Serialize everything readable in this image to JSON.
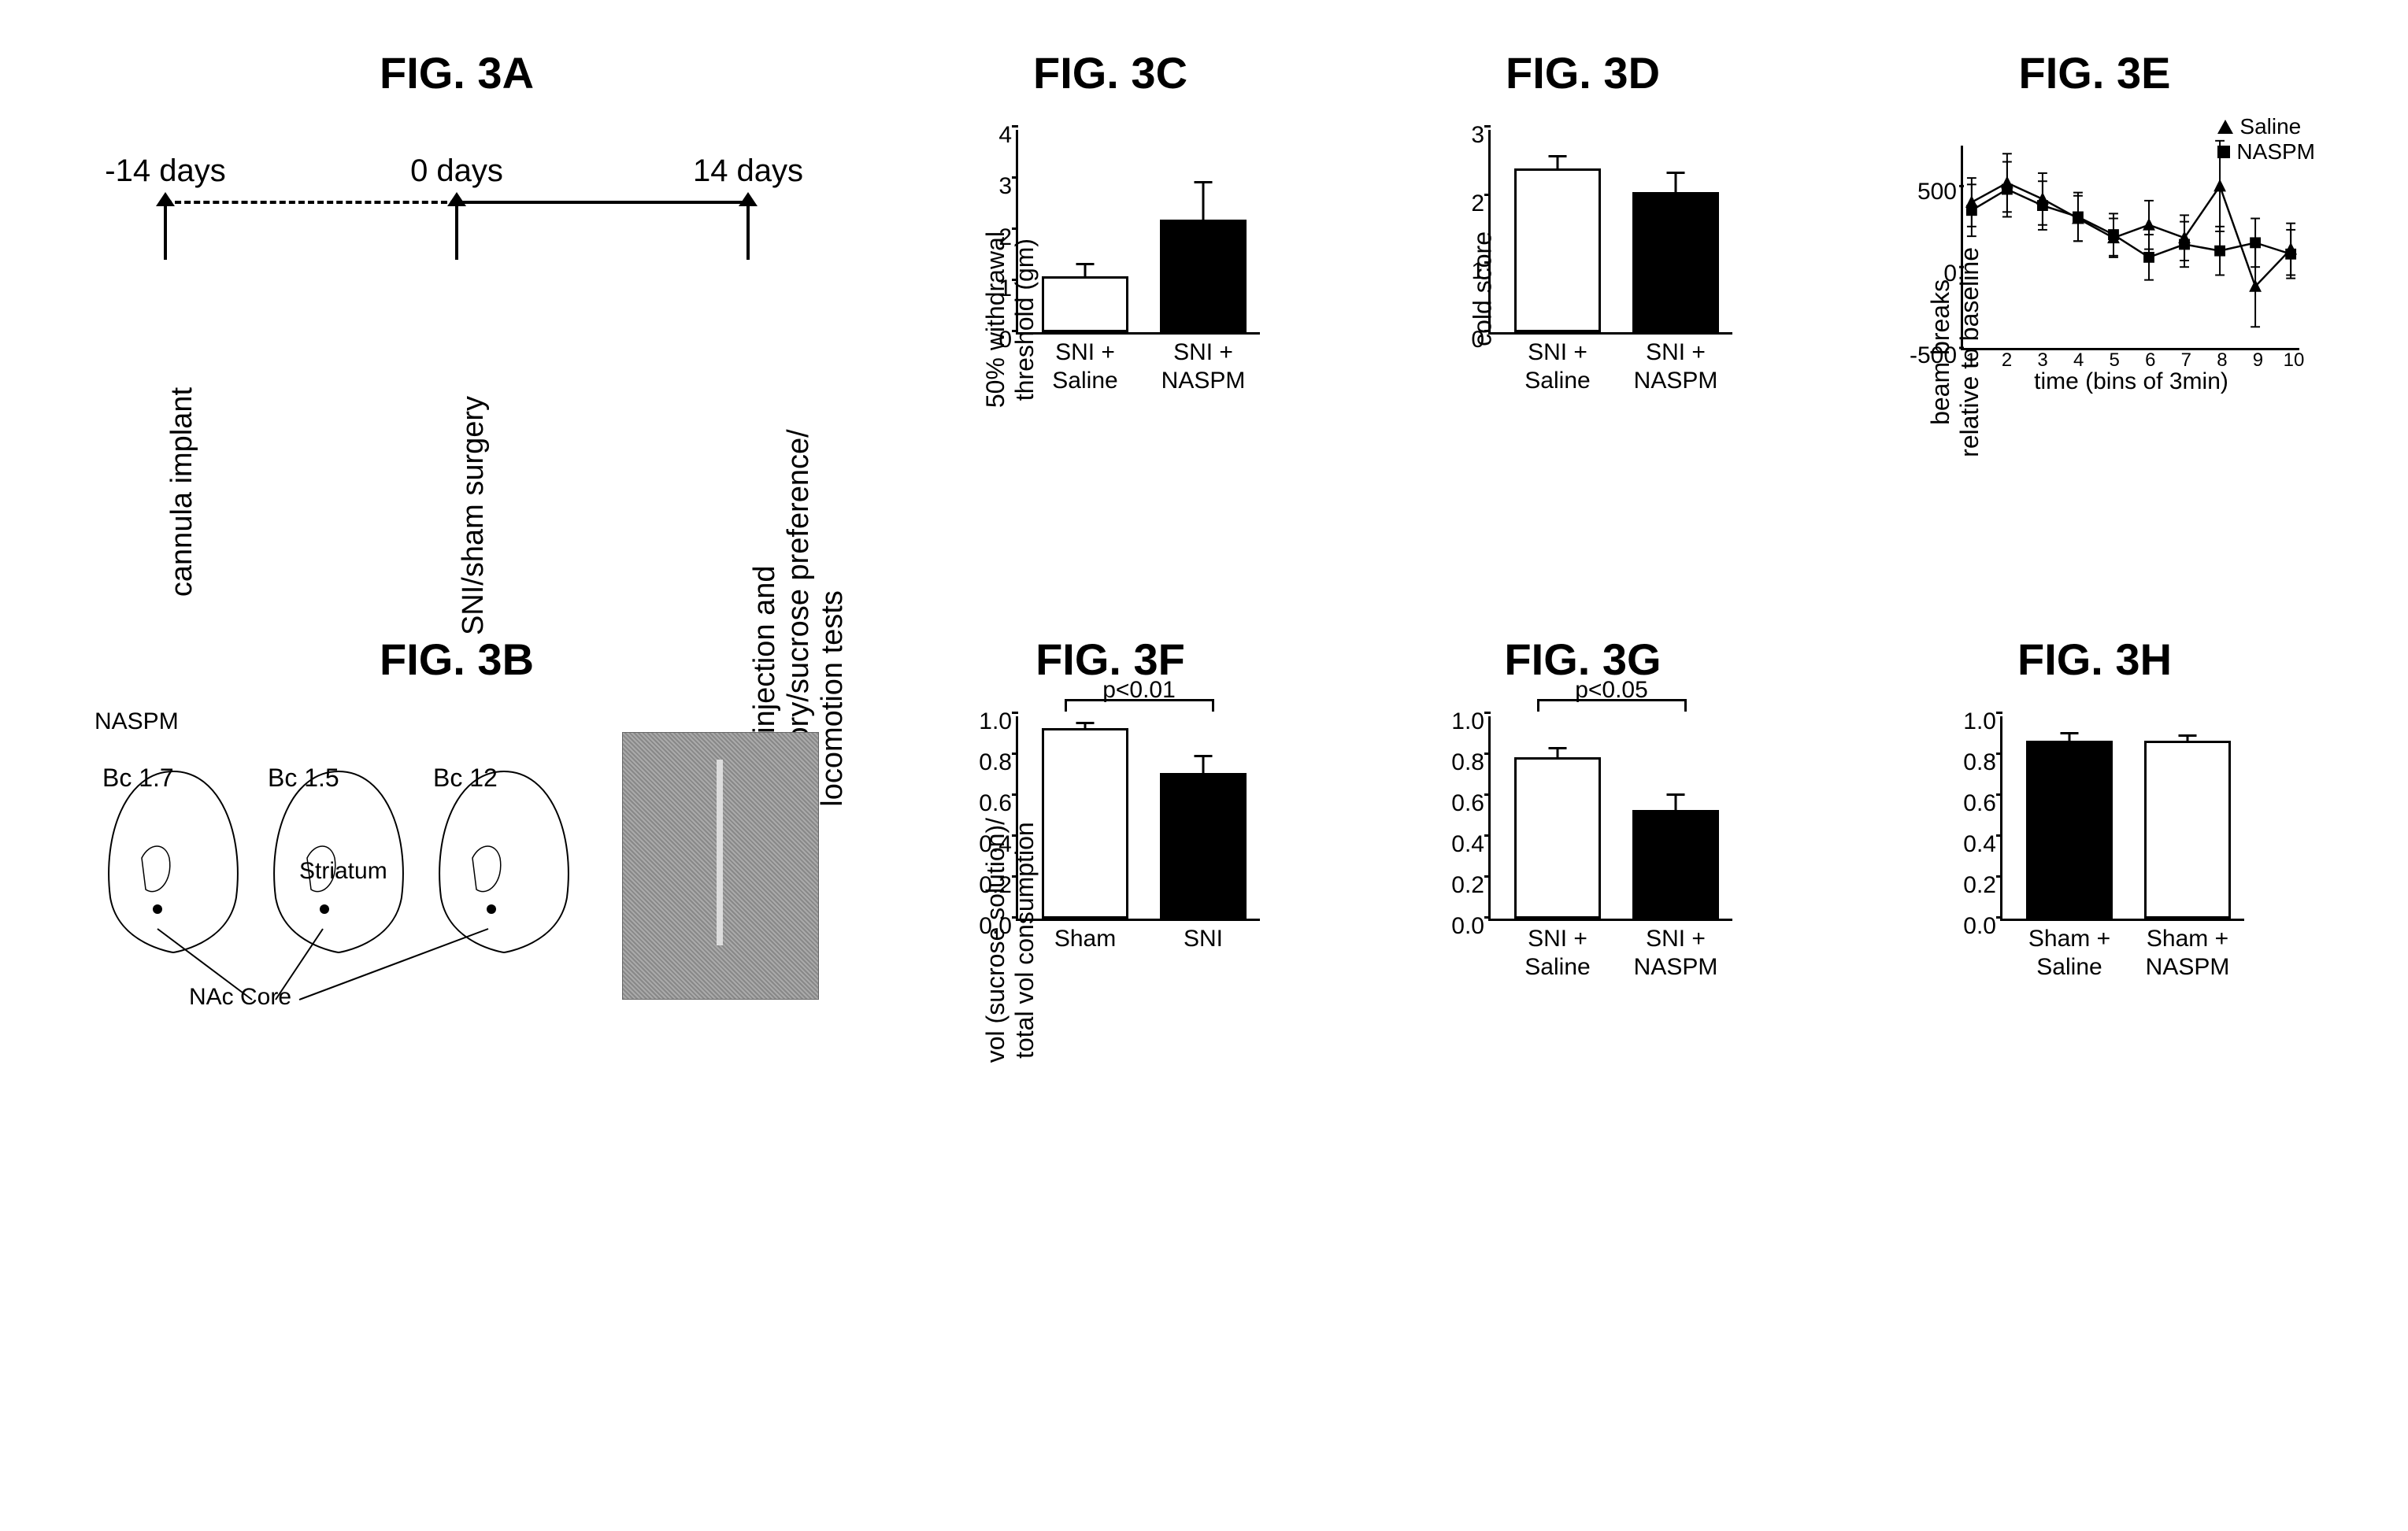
{
  "panels": {
    "A": {
      "title": "FIG. 3A",
      "timeline": {
        "ticks": [
          "-14 days",
          "0 days",
          "14 days"
        ],
        "events": [
          "cannula implant",
          "SNI/sham surgery",
          "microinjection and\nsensory/sucrose preference/\nlocomotion tests"
        ]
      }
    },
    "B": {
      "title": "FIG. 3B",
      "drug_label": "NASPM",
      "bc_labels": [
        "Bc 1.7",
        "Bc 1.5",
        "Bc 12"
      ],
      "anat_labels": [
        "Striatum",
        "NAc Core"
      ]
    },
    "C": {
      "title": "FIG. 3C",
      "type": "bar",
      "ylabel": "50% withdrawal\nthreshold (gm)",
      "ylim": [
        0,
        4
      ],
      "yticks": [
        0,
        1,
        2,
        3,
        4
      ],
      "bars": [
        {
          "label_top": "SNI +",
          "label_bottom": "Saline",
          "value": 1.1,
          "err": 0.25,
          "fill": "white"
        },
        {
          "label_top": "SNI +",
          "label_bottom": "NASPM",
          "value": 2.2,
          "err": 0.75,
          "fill": "black"
        }
      ]
    },
    "D": {
      "title": "FIG. 3D",
      "type": "bar",
      "ylabel": "cold score",
      "ylim": [
        0,
        3
      ],
      "yticks": [
        0,
        1,
        2,
        3
      ],
      "bars": [
        {
          "label_top": "SNI +",
          "label_bottom": "Saline",
          "value": 2.4,
          "err": 0.2,
          "fill": "white"
        },
        {
          "label_top": "SNI +",
          "label_bottom": "NASPM",
          "value": 2.05,
          "err": 0.3,
          "fill": "black"
        }
      ]
    },
    "E": {
      "title": "FIG. 3E",
      "type": "line",
      "ylabel": "beam breaks\nrelative to baseline",
      "xlabel": "time (bins of 3min)",
      "ylim": [
        -500,
        750
      ],
      "yticks": [
        -500,
        0,
        500
      ],
      "xlim": [
        1,
        10
      ],
      "xticks": [
        1,
        2,
        3,
        4,
        5,
        6,
        7,
        8,
        9,
        10
      ],
      "legend": [
        {
          "name": "Saline",
          "marker": "triangle"
        },
        {
          "name": "NASPM",
          "marker": "square"
        }
      ],
      "series": {
        "saline": [
          400,
          520,
          420,
          300,
          180,
          260,
          180,
          500,
          -120,
          110
        ],
        "naspm": [
          350,
          480,
          380,
          310,
          200,
          60,
          140,
          100,
          150,
          80
        ]
      },
      "err": {
        "saline": [
          150,
          180,
          160,
          140,
          120,
          150,
          140,
          280,
          250,
          160
        ],
        "naspm": [
          160,
          170,
          150,
          150,
          130,
          140,
          140,
          150,
          150,
          150
        ]
      }
    },
    "F": {
      "title": "FIG. 3F",
      "type": "bar",
      "ylabel": "vol (sucrose solution)/\ntotal vol consumption",
      "ylim": [
        0,
        1.0
      ],
      "yticks": [
        0.0,
        0.2,
        0.4,
        0.6,
        0.8,
        1.0
      ],
      "pvalue": "p<0.01",
      "bars": [
        {
          "label_top": "Sham",
          "label_bottom": "",
          "value": 0.93,
          "err": 0.03,
          "fill": "white"
        },
        {
          "label_top": "SNI",
          "label_bottom": "",
          "value": 0.71,
          "err": 0.09,
          "fill": "black"
        }
      ]
    },
    "G": {
      "title": "FIG. 3G",
      "type": "bar",
      "ylabel": "",
      "ylim": [
        0,
        1.0
      ],
      "yticks": [
        0.0,
        0.2,
        0.4,
        0.6,
        0.8,
        1.0
      ],
      "pvalue": "p<0.05",
      "bars": [
        {
          "label_top": "SNI +",
          "label_bottom": "Saline",
          "value": 0.79,
          "err": 0.05,
          "fill": "white"
        },
        {
          "label_top": "SNI +",
          "label_bottom": "NASPM",
          "value": 0.53,
          "err": 0.08,
          "fill": "black"
        }
      ]
    },
    "H": {
      "title": "FIG. 3H",
      "type": "bar",
      "ylabel": "",
      "ylim": [
        0,
        1.0
      ],
      "yticks": [
        0.0,
        0.2,
        0.4,
        0.6,
        0.8,
        1.0
      ],
      "bars": [
        {
          "label_top": "Sham +",
          "label_bottom": "Saline",
          "value": 0.87,
          "err": 0.04,
          "fill": "black"
        },
        {
          "label_top": "Sham +",
          "label_bottom": "NASPM",
          "value": 0.87,
          "err": 0.03,
          "fill": "white"
        }
      ]
    }
  },
  "colors": {
    "line": "#000000",
    "bg": "#ffffff"
  },
  "fonts": {
    "title_pt": 56,
    "axis_pt": 32,
    "tick_pt": 30
  }
}
